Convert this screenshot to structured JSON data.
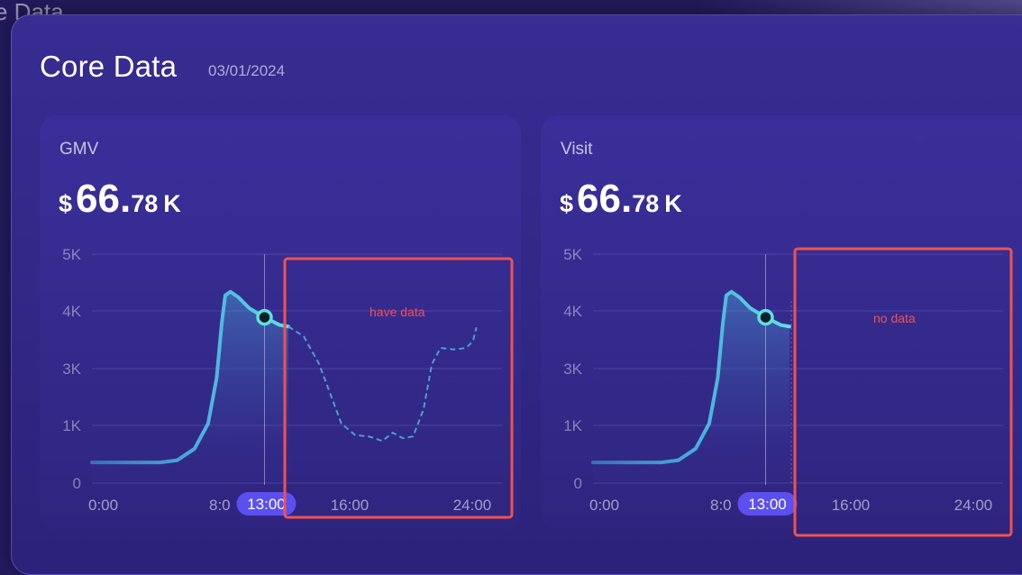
{
  "backdrop": {
    "title": "e Data"
  },
  "panel": {
    "title": "Core Data",
    "date": "03/01/2024"
  },
  "cards": [
    {
      "label": "GMV",
      "value": {
        "currency": "$",
        "integer": "66.",
        "decimal": "78",
        "unit": "K"
      },
      "annotation": "have data",
      "current_label": "13:00"
    },
    {
      "label": "Visit",
      "value": {
        "currency": "$",
        "integer": "66.",
        "decimal": "78",
        "unit": "K"
      },
      "annotation": "no data",
      "current_label": "13:00"
    }
  ],
  "colors": {
    "line": "#5ee0e0",
    "annotation": "#f05252",
    "badge": "#5b4ff0"
  },
  "chart_data": [
    {
      "type": "area",
      "title": "GMV",
      "y_ticks": [
        "0",
        "1K",
        "3K",
        "4K",
        "5K"
      ],
      "x_ticks": [
        "0:00",
        "8:0",
        "16:00",
        "24:00"
      ],
      "xlim": [
        0,
        24
      ],
      "current_x": 13,
      "actual": [
        [
          0,
          0.45
        ],
        [
          2,
          0.45
        ],
        [
          4,
          0.45
        ],
        [
          5,
          0.5
        ],
        [
          6,
          0.75
        ],
        [
          6.8,
          1.3
        ],
        [
          7.3,
          2.3
        ],
        [
          7.6,
          3.5
        ],
        [
          7.8,
          4.1
        ],
        [
          8.1,
          4.18
        ],
        [
          8.6,
          4.05
        ],
        [
          9.2,
          3.82
        ],
        [
          10.1,
          3.62
        ],
        [
          11,
          3.45
        ],
        [
          11.5,
          3.42
        ]
      ],
      "forecast": [
        [
          11.5,
          3.42
        ],
        [
          12.4,
          3.2
        ],
        [
          13.3,
          2.6
        ],
        [
          13.9,
          2.0
        ],
        [
          14.6,
          1.3
        ],
        [
          15.4,
          1.05
        ],
        [
          16.2,
          1.02
        ],
        [
          17,
          0.92
        ],
        [
          17.6,
          1.1
        ],
        [
          18.2,
          0.98
        ],
        [
          18.8,
          1.02
        ],
        [
          19.4,
          1.6
        ],
        [
          19.9,
          2.6
        ],
        [
          20.4,
          2.95
        ],
        [
          21.2,
          2.92
        ],
        [
          21.9,
          2.95
        ],
        [
          22.3,
          3.1
        ],
        [
          22.5,
          3.4
        ]
      ],
      "current_value": 3.62
    },
    {
      "type": "area",
      "title": "Visit",
      "y_ticks": [
        "0",
        "1K",
        "3K",
        "4K",
        "5K"
      ],
      "x_ticks": [
        "0:00",
        "8:0",
        "16:00",
        "24:00"
      ],
      "xlim": [
        0,
        24
      ],
      "current_x": 13,
      "actual": [
        [
          0,
          0.45
        ],
        [
          2,
          0.45
        ],
        [
          4,
          0.45
        ],
        [
          5,
          0.5
        ],
        [
          6,
          0.75
        ],
        [
          6.8,
          1.3
        ],
        [
          7.3,
          2.3
        ],
        [
          7.6,
          3.5
        ],
        [
          7.8,
          4.1
        ],
        [
          8.1,
          4.18
        ],
        [
          8.6,
          4.05
        ],
        [
          9.2,
          3.82
        ],
        [
          10.1,
          3.62
        ],
        [
          11,
          3.45
        ],
        [
          11.5,
          3.42
        ]
      ],
      "forecast": [],
      "current_value": 3.62
    }
  ]
}
